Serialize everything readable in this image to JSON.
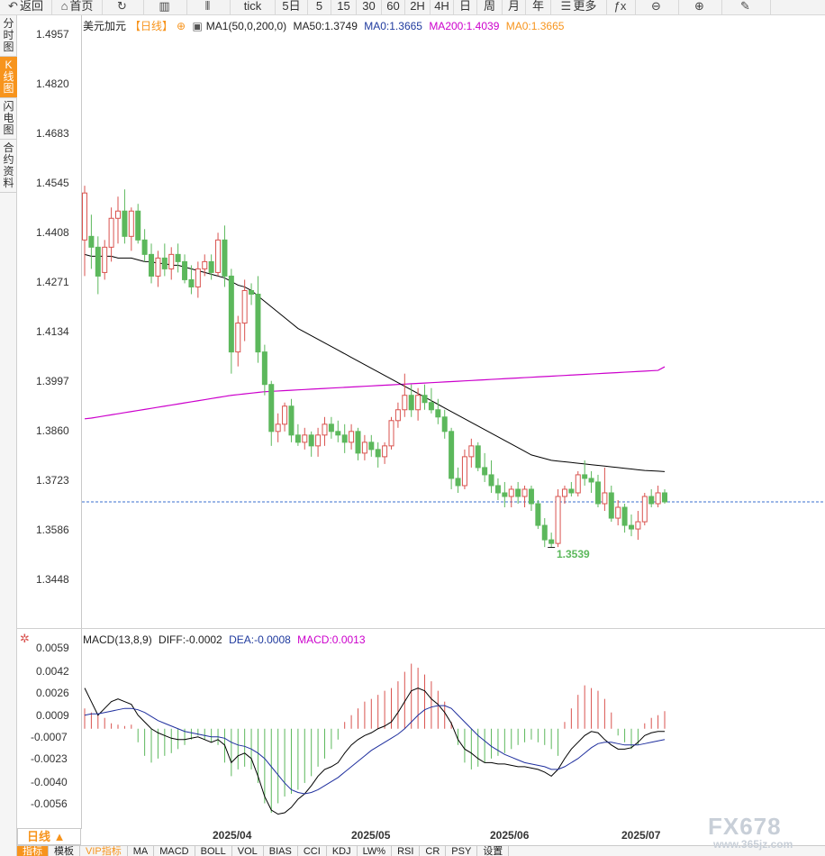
{
  "toolbar": {
    "buttons": [
      {
        "label": "返回",
        "icon": "back-arrow-icon"
      },
      {
        "label": "首页",
        "icon": "home-icon"
      },
      {
        "label": "",
        "icon": "refresh-icon"
      },
      {
        "label": "",
        "icon": "bar-chart-icon"
      },
      {
        "label": "",
        "icon": "candlestick-icon"
      },
      {
        "label": "tick",
        "icon": ""
      },
      {
        "label": "5日",
        "icon": ""
      },
      {
        "label": "5",
        "icon": ""
      },
      {
        "label": "15",
        "icon": ""
      },
      {
        "label": "30",
        "icon": ""
      },
      {
        "label": "60",
        "icon": ""
      },
      {
        "label": "2H",
        "icon": ""
      },
      {
        "label": "4H",
        "icon": ""
      },
      {
        "label": "日",
        "icon": ""
      },
      {
        "label": "周",
        "icon": ""
      },
      {
        "label": "月",
        "icon": ""
      },
      {
        "label": "年",
        "icon": ""
      },
      {
        "label": "更多",
        "icon": "menu-icon"
      },
      {
        "label": "",
        "icon": "function-icon"
      },
      {
        "label": "",
        "icon": "zoom-out-icon"
      },
      {
        "label": "",
        "icon": "zoom-in-icon"
      },
      {
        "label": "",
        "icon": "pen-icon"
      }
    ]
  },
  "side_tabs": [
    "分时图",
    "K线图",
    "闪电图",
    "合约资料"
  ],
  "legend": {
    "symbol": "美元加元",
    "period": "【日线】",
    "ma_name": "MA1(50,0,200,0)",
    "ma50": "MA50:1.3749",
    "ma0a": "MA0:1.3665",
    "ma200": "MA200:1.4039",
    "ma0b": "MA0:1.3665"
  },
  "price_axis": [
    "1.4957",
    "1.4820",
    "1.4683",
    "1.4545",
    "1.4408",
    "1.4271",
    "1.4134",
    "1.3997",
    "1.3860",
    "1.3723",
    "1.3586",
    "1.3448"
  ],
  "low_label": "1.3539",
  "macd_legend": {
    "name": "MACD(13,8,9)",
    "diff": "DIFF:-0.0002",
    "dea": "DEA:-0.0008",
    "macd": "MACD:0.0013"
  },
  "macd_axis": [
    "0.0059",
    "0.0042",
    "0.0026",
    "0.0009",
    "-0.0007",
    "-0.0023",
    "-0.0040",
    "-0.0056"
  ],
  "x_axis": [
    "2025/04",
    "2025/05",
    "2025/06",
    "2025/07"
  ],
  "period_button": "日线 ▲",
  "indicator_tabs": [
    "指标",
    "模板",
    "VIP指标",
    "MA",
    "MACD",
    "BOLL",
    "VOL",
    "BIAS",
    "CCI",
    "KDJ",
    "LW%",
    "RSI",
    "CR",
    "PSY",
    "设置"
  ],
  "watermark": "FX678",
  "watermark_sub": "www.365jz.com",
  "colors": {
    "up": "#d9534f",
    "down": "#5cb85c",
    "ma50": "#000000",
    "ma200": "#cc00cc",
    "accent": "#f7941d",
    "current_price": "#3a6fcf"
  },
  "chart_data": {
    "type": "candlestick",
    "current_price": 1.3665,
    "ylim": [
      1.3448,
      1.4957
    ],
    "macd_ylim": [
      -0.0065,
      0.0062
    ],
    "candles": [
      {
        "o": 1.439,
        "h": 1.454,
        "l": 1.429,
        "c": 1.452
      },
      {
        "o": 1.44,
        "h": 1.446,
        "l": 1.431,
        "c": 1.437
      },
      {
        "o": 1.437,
        "h": 1.44,
        "l": 1.424,
        "c": 1.429
      },
      {
        "o": 1.43,
        "h": 1.439,
        "l": 1.428,
        "c": 1.437
      },
      {
        "o": 1.437,
        "h": 1.448,
        "l": 1.433,
        "c": 1.445
      },
      {
        "o": 1.445,
        "h": 1.451,
        "l": 1.438,
        "c": 1.447
      },
      {
        "o": 1.447,
        "h": 1.453,
        "l": 1.438,
        "c": 1.44
      },
      {
        "o": 1.44,
        "h": 1.448,
        "l": 1.436,
        "c": 1.447
      },
      {
        "o": 1.447,
        "h": 1.449,
        "l": 1.438,
        "c": 1.439
      },
      {
        "o": 1.439,
        "h": 1.442,
        "l": 1.433,
        "c": 1.435
      },
      {
        "o": 1.435,
        "h": 1.438,
        "l": 1.427,
        "c": 1.429
      },
      {
        "o": 1.429,
        "h": 1.436,
        "l": 1.426,
        "c": 1.434
      },
      {
        "o": 1.434,
        "h": 1.438,
        "l": 1.429,
        "c": 1.431
      },
      {
        "o": 1.431,
        "h": 1.437,
        "l": 1.428,
        "c": 1.435
      },
      {
        "o": 1.435,
        "h": 1.438,
        "l": 1.43,
        "c": 1.433
      },
      {
        "o": 1.433,
        "h": 1.435,
        "l": 1.427,
        "c": 1.428
      },
      {
        "o": 1.428,
        "h": 1.432,
        "l": 1.424,
        "c": 1.426
      },
      {
        "o": 1.426,
        "h": 1.433,
        "l": 1.423,
        "c": 1.431
      },
      {
        "o": 1.431,
        "h": 1.435,
        "l": 1.429,
        "c": 1.433
      },
      {
        "o": 1.433,
        "h": 1.435,
        "l": 1.428,
        "c": 1.43
      },
      {
        "o": 1.43,
        "h": 1.441,
        "l": 1.429,
        "c": 1.439
      },
      {
        "o": 1.439,
        "h": 1.443,
        "l": 1.426,
        "c": 1.429
      },
      {
        "o": 1.429,
        "h": 1.431,
        "l": 1.402,
        "c": 1.408
      },
      {
        "o": 1.408,
        "h": 1.418,
        "l": 1.404,
        "c": 1.416
      },
      {
        "o": 1.416,
        "h": 1.428,
        "l": 1.411,
        "c": 1.425
      },
      {
        "o": 1.425,
        "h": 1.427,
        "l": 1.421,
        "c": 1.424
      },
      {
        "o": 1.424,
        "h": 1.429,
        "l": 1.405,
        "c": 1.408
      },
      {
        "o": 1.408,
        "h": 1.41,
        "l": 1.396,
        "c": 1.399
      },
      {
        "o": 1.399,
        "h": 1.4,
        "l": 1.382,
        "c": 1.386
      },
      {
        "o": 1.386,
        "h": 1.391,
        "l": 1.383,
        "c": 1.388
      },
      {
        "o": 1.388,
        "h": 1.394,
        "l": 1.386,
        "c": 1.393
      },
      {
        "o": 1.393,
        "h": 1.395,
        "l": 1.383,
        "c": 1.385
      },
      {
        "o": 1.385,
        "h": 1.388,
        "l": 1.382,
        "c": 1.383
      },
      {
        "o": 1.383,
        "h": 1.387,
        "l": 1.381,
        "c": 1.385
      },
      {
        "o": 1.385,
        "h": 1.386,
        "l": 1.379,
        "c": 1.382
      },
      {
        "o": 1.382,
        "h": 1.387,
        "l": 1.379,
        "c": 1.385
      },
      {
        "o": 1.385,
        "h": 1.39,
        "l": 1.382,
        "c": 1.388
      },
      {
        "o": 1.388,
        "h": 1.39,
        "l": 1.384,
        "c": 1.386
      },
      {
        "o": 1.386,
        "h": 1.389,
        "l": 1.383,
        "c": 1.385
      },
      {
        "o": 1.385,
        "h": 1.388,
        "l": 1.38,
        "c": 1.383
      },
      {
        "o": 1.383,
        "h": 1.388,
        "l": 1.381,
        "c": 1.386
      },
      {
        "o": 1.386,
        "h": 1.387,
        "l": 1.378,
        "c": 1.38
      },
      {
        "o": 1.38,
        "h": 1.385,
        "l": 1.378,
        "c": 1.383
      },
      {
        "o": 1.383,
        "h": 1.385,
        "l": 1.379,
        "c": 1.381
      },
      {
        "o": 1.381,
        "h": 1.383,
        "l": 1.376,
        "c": 1.379
      },
      {
        "o": 1.379,
        "h": 1.383,
        "l": 1.377,
        "c": 1.382
      },
      {
        "o": 1.382,
        "h": 1.39,
        "l": 1.381,
        "c": 1.389
      },
      {
        "o": 1.389,
        "h": 1.394,
        "l": 1.387,
        "c": 1.392
      },
      {
        "o": 1.392,
        "h": 1.402,
        "l": 1.39,
        "c": 1.396
      },
      {
        "o": 1.396,
        "h": 1.399,
        "l": 1.39,
        "c": 1.392
      },
      {
        "o": 1.392,
        "h": 1.398,
        "l": 1.389,
        "c": 1.396
      },
      {
        "o": 1.396,
        "h": 1.399,
        "l": 1.392,
        "c": 1.394
      },
      {
        "o": 1.394,
        "h": 1.398,
        "l": 1.391,
        "c": 1.392
      },
      {
        "o": 1.392,
        "h": 1.395,
        "l": 1.388,
        "c": 1.39
      },
      {
        "o": 1.39,
        "h": 1.392,
        "l": 1.384,
        "c": 1.386
      },
      {
        "o": 1.386,
        "h": 1.387,
        "l": 1.37,
        "c": 1.373
      },
      {
        "o": 1.373,
        "h": 1.376,
        "l": 1.369,
        "c": 1.371
      },
      {
        "o": 1.371,
        "h": 1.381,
        "l": 1.37,
        "c": 1.379
      },
      {
        "o": 1.379,
        "h": 1.384,
        "l": 1.376,
        "c": 1.382
      },
      {
        "o": 1.382,
        "h": 1.383,
        "l": 1.375,
        "c": 1.376
      },
      {
        "o": 1.376,
        "h": 1.38,
        "l": 1.372,
        "c": 1.374
      },
      {
        "o": 1.374,
        "h": 1.378,
        "l": 1.369,
        "c": 1.371
      },
      {
        "o": 1.371,
        "h": 1.373,
        "l": 1.367,
        "c": 1.369
      },
      {
        "o": 1.369,
        "h": 1.372,
        "l": 1.365,
        "c": 1.368
      },
      {
        "o": 1.368,
        "h": 1.371,
        "l": 1.365,
        "c": 1.37
      },
      {
        "o": 1.37,
        "h": 1.372,
        "l": 1.366,
        "c": 1.368
      },
      {
        "o": 1.368,
        "h": 1.371,
        "l": 1.365,
        "c": 1.37
      },
      {
        "o": 1.37,
        "h": 1.371,
        "l": 1.364,
        "c": 1.366
      },
      {
        "o": 1.366,
        "h": 1.367,
        "l": 1.359,
        "c": 1.36
      },
      {
        "o": 1.36,
        "h": 1.362,
        "l": 1.354,
        "c": 1.356
      },
      {
        "o": 1.356,
        "h": 1.358,
        "l": 1.3539,
        "c": 1.355
      },
      {
        "o": 1.355,
        "h": 1.37,
        "l": 1.354,
        "c": 1.368
      },
      {
        "o": 1.368,
        "h": 1.371,
        "l": 1.366,
        "c": 1.37
      },
      {
        "o": 1.37,
        "h": 1.372,
        "l": 1.368,
        "c": 1.369
      },
      {
        "o": 1.369,
        "h": 1.375,
        "l": 1.368,
        "c": 1.374
      },
      {
        "o": 1.374,
        "h": 1.378,
        "l": 1.371,
        "c": 1.373
      },
      {
        "o": 1.373,
        "h": 1.375,
        "l": 1.369,
        "c": 1.372
      },
      {
        "o": 1.372,
        "h": 1.374,
        "l": 1.365,
        "c": 1.366
      },
      {
        "o": 1.366,
        "h": 1.376,
        "l": 1.364,
        "c": 1.369
      },
      {
        "o": 1.369,
        "h": 1.371,
        "l": 1.361,
        "c": 1.362
      },
      {
        "o": 1.362,
        "h": 1.367,
        "l": 1.36,
        "c": 1.365
      },
      {
        "o": 1.365,
        "h": 1.366,
        "l": 1.358,
        "c": 1.36
      },
      {
        "o": 1.36,
        "h": 1.363,
        "l": 1.357,
        "c": 1.359
      },
      {
        "o": 1.359,
        "h": 1.364,
        "l": 1.356,
        "c": 1.361
      },
      {
        "o": 1.361,
        "h": 1.369,
        "l": 1.36,
        "c": 1.368
      },
      {
        "o": 1.368,
        "h": 1.37,
        "l": 1.365,
        "c": 1.366
      },
      {
        "o": 1.366,
        "h": 1.371,
        "l": 1.365,
        "c": 1.369
      },
      {
        "o": 1.369,
        "h": 1.37,
        "l": 1.366,
        "c": 1.3665
      }
    ],
    "ma50": [
      1.435,
      1.4345,
      1.4345,
      1.4345,
      1.4345,
      1.434,
      1.434,
      1.434,
      1.4335,
      1.433,
      1.433,
      1.4325,
      1.4325,
      1.432,
      1.432,
      1.4315,
      1.431,
      1.4305,
      1.43,
      1.4295,
      1.429,
      1.4285,
      1.4275,
      1.4265,
      1.426,
      1.425,
      1.4235,
      1.422,
      1.4205,
      1.419,
      1.4175,
      1.416,
      1.4145,
      1.4135,
      1.4125,
      1.4115,
      1.4105,
      1.4095,
      1.4085,
      1.4075,
      1.4065,
      1.4055,
      1.4045,
      1.4035,
      1.4025,
      1.4015,
      1.4005,
      1.3995,
      1.3985,
      1.3975,
      1.3965,
      1.3955,
      1.3945,
      1.3935,
      1.3925,
      1.3915,
      1.3905,
      1.3895,
      1.3885,
      1.3875,
      1.3865,
      1.3855,
      1.3845,
      1.3835,
      1.3825,
      1.3815,
      1.3805,
      1.3795,
      1.379,
      1.3785,
      1.378,
      1.3778,
      1.3776,
      1.3774,
      1.3772,
      1.377,
      1.3768,
      1.3766,
      1.3764,
      1.3762,
      1.376,
      1.3758,
      1.3756,
      1.3754,
      1.3752,
      1.3751,
      1.375,
      1.3749
    ],
    "ma200": [
      1.3895,
      1.3897,
      1.39,
      1.3903,
      1.3906,
      1.3909,
      1.3912,
      1.3915,
      1.3918,
      1.3921,
      1.3924,
      1.3927,
      1.393,
      1.3933,
      1.3936,
      1.3939,
      1.3942,
      1.3945,
      1.3948,
      1.3951,
      1.3954,
      1.3957,
      1.396,
      1.3962,
      1.3964,
      1.3966,
      1.3968,
      1.397,
      1.3971,
      1.3972,
      1.3973,
      1.3974,
      1.3975,
      1.3976,
      1.3977,
      1.3978,
      1.3979,
      1.398,
      1.3981,
      1.3982,
      1.3983,
      1.3984,
      1.3985,
      1.3986,
      1.3987,
      1.3988,
      1.3989,
      1.399,
      1.3991,
      1.3992,
      1.3993,
      1.3994,
      1.3995,
      1.3996,
      1.3997,
      1.3998,
      1.3999,
      1.4,
      1.4001,
      1.4002,
      1.4003,
      1.4004,
      1.4005,
      1.4006,
      1.4007,
      1.4008,
      1.4009,
      1.401,
      1.4011,
      1.4012,
      1.4013,
      1.4014,
      1.4015,
      1.4016,
      1.4017,
      1.4018,
      1.4019,
      1.402,
      1.4021,
      1.4022,
      1.4023,
      1.4024,
      1.4025,
      1.4026,
      1.4027,
      1.4028,
      1.4029,
      1.4039
    ],
    "macd_hist": [
      0.0015,
      0.0012,
      0.001,
      0.0008,
      0.0004,
      0.0003,
      0.0002,
      0.0003,
      -0.001,
      -0.002,
      -0.0025,
      -0.0022,
      -0.002,
      -0.0018,
      -0.0015,
      -0.0012,
      -0.0008,
      -0.0005,
      -0.0008,
      -0.001,
      -0.0012,
      -0.0025,
      -0.0035,
      -0.003,
      -0.0028,
      -0.003,
      -0.004,
      -0.0055,
      -0.0062,
      -0.0055,
      -0.005,
      -0.0048,
      -0.0045,
      -0.004,
      -0.0035,
      -0.0028,
      -0.0022,
      -0.0015,
      -0.0008,
      0.0005,
      0.001,
      0.0015,
      0.002,
      0.0022,
      0.0025,
      0.0028,
      0.003,
      0.0035,
      0.0042,
      0.0048,
      0.0045,
      0.004,
      0.0035,
      0.0028,
      0.002,
      0.0005,
      -0.0012,
      -0.0025,
      -0.003,
      -0.0028,
      -0.0025,
      -0.0022,
      -0.002,
      -0.0018,
      -0.0015,
      -0.0012,
      -0.001,
      -0.0008,
      -0.001,
      -0.0012,
      -0.0015,
      -0.002,
      0.0005,
      0.0015,
      0.0025,
      0.0032,
      0.003,
      0.0028,
      0.0022,
      0.0012,
      -0.0005,
      -0.001,
      -0.0015,
      -0.0012,
      0.0004,
      0.0008,
      0.001,
      0.0013
    ],
    "diff": [
      0.003,
      0.002,
      0.001,
      0.0015,
      0.002,
      0.0022,
      0.002,
      0.0018,
      0.001,
      0.0005,
      0.0,
      -0.0003,
      -0.0005,
      -0.0007,
      -0.0008,
      -0.0008,
      -0.0007,
      -0.0006,
      -0.0008,
      -0.001,
      -0.0008,
      -0.0012,
      -0.0025,
      -0.002,
      -0.0018,
      -0.0022,
      -0.0035,
      -0.005,
      -0.006,
      -0.0063,
      -0.0062,
      -0.0058,
      -0.0052,
      -0.0048,
      -0.0042,
      -0.0035,
      -0.003,
      -0.0028,
      -0.0025,
      -0.0018,
      -0.0012,
      -0.0008,
      -0.0005,
      -0.0003,
      0.0,
      0.0002,
      0.0005,
      0.0012,
      0.002,
      0.0028,
      0.003,
      0.0028,
      0.0022,
      0.0018,
      0.0012,
      0.0004,
      -0.0008,
      -0.0015,
      -0.0018,
      -0.0022,
      -0.0025,
      -0.0025,
      -0.0026,
      -0.0026,
      -0.0027,
      -0.0028,
      -0.0028,
      -0.0029,
      -0.003,
      -0.0032,
      -0.0035,
      -0.003,
      -0.0022,
      -0.0015,
      -0.001,
      -0.0005,
      -0.0002,
      -0.0003,
      -0.0008,
      -0.0012,
      -0.0015,
      -0.0015,
      -0.0014,
      -0.001,
      -0.0005,
      -0.0003,
      -0.0002,
      -0.0002
    ],
    "dea": [
      0.001,
      0.0011,
      0.0011,
      0.0012,
      0.0013,
      0.0014,
      0.0015,
      0.0015,
      0.0014,
      0.0012,
      0.0009,
      0.0006,
      0.0004,
      0.0002,
      0.0,
      -0.0002,
      -0.0003,
      -0.0004,
      -0.0005,
      -0.0006,
      -0.0006,
      -0.0007,
      -0.001,
      -0.0012,
      -0.0013,
      -0.0015,
      -0.0018,
      -0.0022,
      -0.0028,
      -0.0034,
      -0.004,
      -0.0045,
      -0.0047,
      -0.0048,
      -0.0047,
      -0.0045,
      -0.0042,
      -0.0039,
      -0.0036,
      -0.0032,
      -0.0028,
      -0.0024,
      -0.002,
      -0.0016,
      -0.0013,
      -0.001,
      -0.0007,
      -0.0004,
      0.0,
      0.0005,
      0.001,
      0.0014,
      0.0016,
      0.0017,
      0.0017,
      0.0015,
      0.001,
      0.0005,
      0.0,
      -0.0005,
      -0.0009,
      -0.0013,
      -0.0016,
      -0.0019,
      -0.0021,
      -0.0023,
      -0.0025,
      -0.0026,
      -0.0027,
      -0.0028,
      -0.003,
      -0.003,
      -0.0028,
      -0.0025,
      -0.0022,
      -0.0018,
      -0.0014,
      -0.0011,
      -0.001,
      -0.001,
      -0.0011,
      -0.0012,
      -0.0012,
      -0.0012,
      -0.0011,
      -0.001,
      -0.0009,
      -0.0008
    ]
  }
}
